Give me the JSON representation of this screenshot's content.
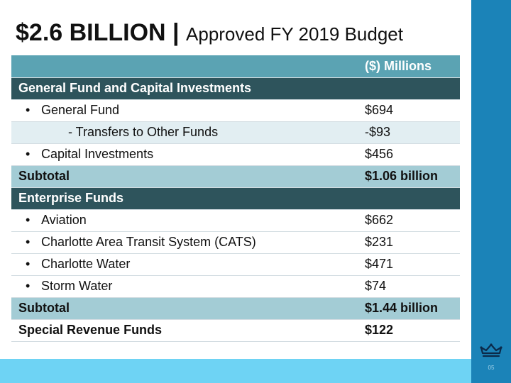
{
  "title": {
    "bold": "$2.6 BILLION |",
    "light": "Approved FY 2019 Budget"
  },
  "table": {
    "header": {
      "label": "",
      "amount": "($) Millions"
    },
    "rows": [
      {
        "type": "section",
        "label": "General Fund and Capital Investments",
        "amount": ""
      },
      {
        "type": "item",
        "label": "General Fund",
        "amount": "$694"
      },
      {
        "type": "sub",
        "label": "- Transfers to Other Funds",
        "amount": "-$93"
      },
      {
        "type": "item",
        "label": "Capital Investments",
        "amount": "$456"
      },
      {
        "type": "subtotal",
        "label": "Subtotal",
        "amount": "$1.06 billion"
      },
      {
        "type": "section",
        "label": "Enterprise Funds",
        "amount": ""
      },
      {
        "type": "item",
        "label": "Aviation",
        "amount": "$662"
      },
      {
        "type": "item",
        "label": "Charlotte Area Transit System (CATS)",
        "amount": "$231"
      },
      {
        "type": "item",
        "label": "Charlotte Water",
        "amount": "$471"
      },
      {
        "type": "item",
        "label": "Storm Water",
        "amount": "$74"
      },
      {
        "type": "subtotal",
        "label": "Subtotal",
        "amount": "$1.44 billion"
      },
      {
        "type": "special",
        "label": "Special Revenue Funds",
        "amount": "$122"
      }
    ]
  },
  "bullet": "•",
  "logo_icon": "crown-icon",
  "page_number": "05",
  "colors": {
    "header": "#5ba3b3",
    "section": "#2e545c",
    "subtotal": "#a3ccd5",
    "sub_row": "#e2eef2",
    "side_band": "#1b83b8",
    "bottom_band": "#6ed3f4"
  }
}
